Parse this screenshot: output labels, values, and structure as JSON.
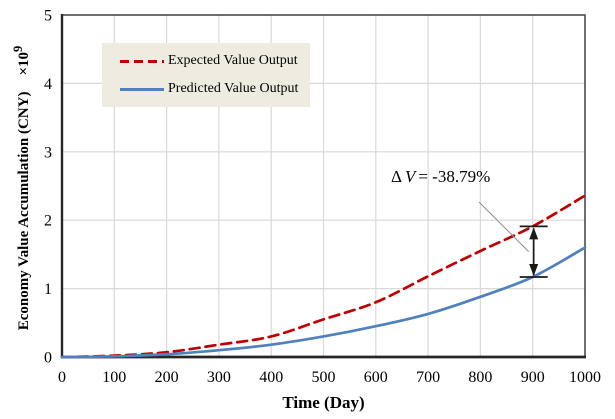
{
  "chart_data": {
    "type": "line",
    "title": "",
    "xlabel": "Time (Day)",
    "ylabel_main": "Economy Value Accumulation (CNY)",
    "ylabel_mult": "×10",
    "ylabel_exp": "9",
    "x": [
      0,
      100,
      200,
      300,
      400,
      500,
      600,
      700,
      800,
      900,
      1000
    ],
    "series": [
      {
        "name": "Expected Value Output",
        "color": "#c00000",
        "style": "dashed",
        "values": [
          0,
          0.02,
          0.07,
          0.18,
          0.3,
          0.55,
          0.8,
          1.18,
          1.55,
          1.91,
          2.36
        ]
      },
      {
        "name": "Predicted Value Output",
        "color": "#4f81bd",
        "style": "solid",
        "values": [
          0,
          0.01,
          0.04,
          0.1,
          0.18,
          0.3,
          0.45,
          0.63,
          0.88,
          1.17,
          1.6
        ]
      }
    ],
    "xlim": [
      0,
      1000
    ],
    "ylim": [
      0,
      5
    ],
    "x_ticks": [
      0,
      100,
      200,
      300,
      400,
      500,
      600,
      700,
      800,
      900,
      1000
    ],
    "y_ticks": [
      0,
      1,
      2,
      3,
      4,
      5
    ],
    "grid": true,
    "legend_position": "top-left-inside",
    "annotation": {
      "delta": "Δ",
      "variable": "V",
      "value": "= -38.79%",
      "x_day": 900
    }
  },
  "legend": {
    "background": "#eeece1",
    "items": [
      {
        "label": "Expected Value Output",
        "color": "#c00000",
        "dashed": true
      },
      {
        "label": "Predicted Value Output",
        "color": "#4f81bd",
        "dashed": false
      }
    ]
  },
  "colors": {
    "expected_line": "#c00000",
    "predicted_line": "#4f81bd",
    "gridline": "#d9d9d9",
    "axis_border": "#3f3f3f",
    "axis_main": "#262626",
    "arrow": "#1a1a1a",
    "leader_line": "#8c8c8c",
    "legend_background": "#eeece1"
  }
}
